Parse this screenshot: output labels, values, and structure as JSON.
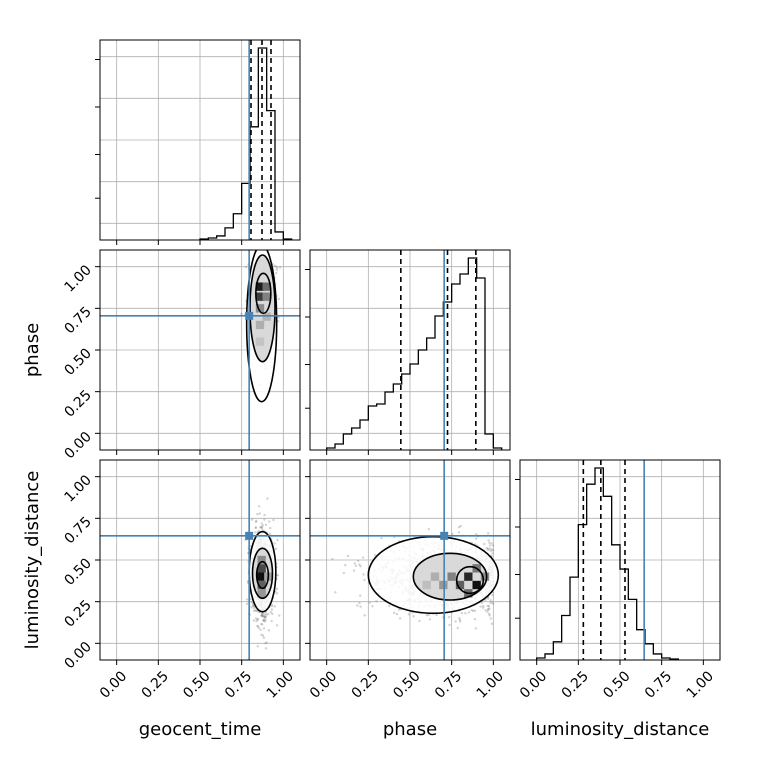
{
  "chart_data": {
    "type": "corner",
    "title": "",
    "parameters": [
      "geocent_time",
      "phase",
      "luminosity_distance"
    ],
    "axis_labels": {
      "x": [
        "geocent_time",
        "phase",
        "luminosity_distance"
      ],
      "y": [
        "phase",
        "luminosity_distance"
      ]
    },
    "ticks": [
      0,
      0.25,
      0.5,
      0.75,
      1
    ],
    "tick_labels": [
      "0.00",
      "0.25",
      "0.50",
      "0.75",
      "1.00"
    ],
    "axis_range": [
      -0.1,
      1.1
    ],
    "grid": true,
    "colors": {
      "truth": "#4682b4",
      "hist": "#000000",
      "points": "#7f7f7f"
    },
    "truths": {
      "geocent_time": 0.795,
      "phase": 0.705,
      "luminosity_distance": 0.645
    },
    "quantiles": {
      "geocent_time": [
        0.806,
        0.872,
        0.926
      ],
      "phase": [
        0.445,
        0.725,
        0.895
      ],
      "luminosity_distance": [
        0.28,
        0.385,
        0.53
      ]
    },
    "histograms": {
      "geocent_time": {
        "bin_edges": [
          0.5,
          0.55,
          0.6,
          0.65,
          0.7,
          0.75,
          0.8,
          0.85,
          0.9,
          0.95,
          1.0,
          1.05
        ],
        "counts": [
          0.005,
          0.01,
          0.02,
          0.06,
          0.13,
          0.28,
          0.56,
          0.95,
          0.64,
          0.04,
          0.005
        ]
      },
      "phase": {
        "bin_edges": [
          0.0,
          0.05,
          0.1,
          0.15,
          0.2,
          0.25,
          0.3,
          0.35,
          0.4,
          0.45,
          0.5,
          0.55,
          0.6,
          0.65,
          0.7,
          0.75,
          0.8,
          0.85,
          0.9,
          0.95,
          1.0,
          1.05
        ],
        "counts": [
          0.01,
          0.03,
          0.08,
          0.11,
          0.15,
          0.22,
          0.23,
          0.29,
          0.33,
          0.38,
          0.43,
          0.5,
          0.56,
          0.67,
          0.74,
          0.83,
          0.88,
          0.96,
          0.86,
          0.08,
          0.01
        ]
      },
      "luminosity_distance": {
        "bin_edges": [
          0.0,
          0.05,
          0.1,
          0.15,
          0.2,
          0.25,
          0.3,
          0.35,
          0.4,
          0.45,
          0.5,
          0.55,
          0.6,
          0.65,
          0.7,
          0.75,
          0.8,
          0.85
        ],
        "counts": [
          0.01,
          0.03,
          0.09,
          0.22,
          0.41,
          0.67,
          0.87,
          0.95,
          0.81,
          0.57,
          0.45,
          0.3,
          0.15,
          0.08,
          0.03,
          0.01,
          0.005
        ]
      }
    },
    "scatter": [
      {
        "x": "geocent_time",
        "y": "phase",
        "center": [
          0.875,
          0.82
        ],
        "spread": [
          0.035,
          0.17
        ],
        "n": 900,
        "contours": [
          {
            "cx": 0.88,
            "cy": 0.84,
            "rx": 0.045,
            "ry": 0.12
          },
          {
            "cx": 0.875,
            "cy": 0.75,
            "rx": 0.075,
            "ry": 0.32
          },
          {
            "cx": 0.87,
            "cy": 0.66,
            "rx": 0.09,
            "ry": 0.47
          }
        ],
        "cells": [
          {
            "x": 0.86,
            "y": 0.88,
            "v": 0.9
          },
          {
            "x": 0.86,
            "y": 0.82,
            "v": 0.75
          },
          {
            "x": 0.9,
            "y": 0.88,
            "v": 0.55
          },
          {
            "x": 0.9,
            "y": 0.82,
            "v": 0.45
          },
          {
            "x": 0.86,
            "y": 0.75,
            "v": 0.4
          },
          {
            "x": 0.86,
            "y": 0.65,
            "v": 0.25
          },
          {
            "x": 0.9,
            "y": 0.7,
            "v": 0.22
          },
          {
            "x": 0.86,
            "y": 0.55,
            "v": 0.15
          }
        ]
      },
      {
        "x": "geocent_time",
        "y": "luminosity_distance",
        "center": [
          0.875,
          0.42
        ],
        "spread": [
          0.035,
          0.14
        ],
        "n": 900,
        "contours": [
          {
            "cx": 0.875,
            "cy": 0.41,
            "rx": 0.035,
            "ry": 0.08
          },
          {
            "cx": 0.875,
            "cy": 0.42,
            "rx": 0.06,
            "ry": 0.15
          },
          {
            "cx": 0.875,
            "cy": 0.43,
            "rx": 0.08,
            "ry": 0.24
          }
        ],
        "cells": [
          {
            "x": 0.87,
            "y": 0.4,
            "v": 0.95
          },
          {
            "x": 0.87,
            "y": 0.45,
            "v": 0.7
          },
          {
            "x": 0.87,
            "y": 0.35,
            "v": 0.6
          },
          {
            "x": 0.87,
            "y": 0.5,
            "v": 0.4
          },
          {
            "x": 0.87,
            "y": 0.3,
            "v": 0.35
          },
          {
            "x": 0.91,
            "y": 0.4,
            "v": 0.3
          }
        ]
      },
      {
        "x": "phase",
        "y": "luminosity_distance",
        "center": [
          0.72,
          0.4
        ],
        "spread": [
          0.2,
          0.1
        ],
        "n": 1400,
        "contours": [
          {
            "cx": 0.86,
            "cy": 0.38,
            "rx": 0.08,
            "ry": 0.08
          },
          {
            "cx": 0.74,
            "cy": 0.4,
            "rx": 0.22,
            "ry": 0.14
          },
          {
            "cx": 0.64,
            "cy": 0.41,
            "rx": 0.39,
            "ry": 0.23
          }
        ],
        "cells": [
          {
            "x": 0.85,
            "y": 0.4,
            "v": 0.85
          },
          {
            "x": 0.9,
            "y": 0.35,
            "v": 0.95
          },
          {
            "x": 0.8,
            "y": 0.35,
            "v": 0.6
          },
          {
            "x": 0.75,
            "y": 0.4,
            "v": 0.45
          },
          {
            "x": 0.9,
            "y": 0.45,
            "v": 0.5
          },
          {
            "x": 0.7,
            "y": 0.35,
            "v": 0.35
          },
          {
            "x": 0.65,
            "y": 0.4,
            "v": 0.25
          },
          {
            "x": 0.6,
            "y": 0.35,
            "v": 0.18
          },
          {
            "x": 0.85,
            "y": 0.3,
            "v": 0.55
          },
          {
            "x": 0.95,
            "y": 0.4,
            "v": 0.4
          }
        ]
      }
    ]
  }
}
